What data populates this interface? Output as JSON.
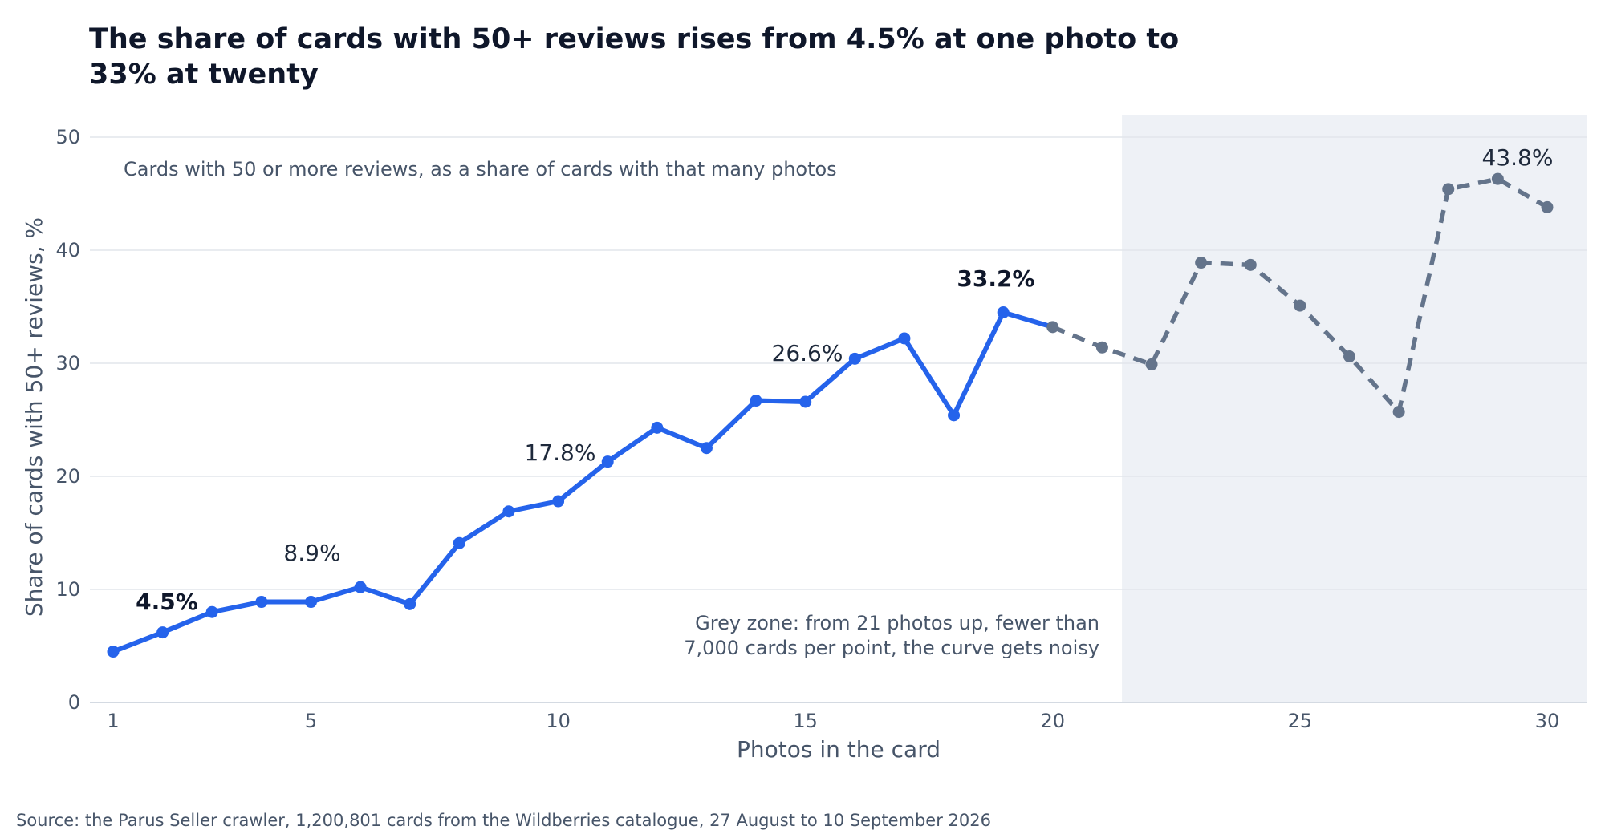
{
  "chart_data": {
    "type": "line",
    "title_lines": [
      "The share of cards with 50+ reviews rises from 4.5% at one photo to",
      "33% at twenty"
    ],
    "subtitle": "Cards with 50 or more reviews, as a share of cards with that many photos",
    "xlabel": "Photos in the card",
    "ylabel": "Share of cards with 50+ reviews, %",
    "xlim": [
      0.5,
      30.8
    ],
    "ylim": [
      0,
      52
    ],
    "x_ticks": [
      1,
      5,
      10,
      15,
      20,
      25,
      30
    ],
    "y_ticks": [
      0,
      10,
      20,
      30,
      40,
      50
    ],
    "grid": "horizontal",
    "x": [
      1,
      2,
      3,
      4,
      5,
      6,
      7,
      8,
      9,
      10,
      11,
      12,
      13,
      14,
      15,
      16,
      17,
      18,
      19,
      20,
      21,
      22,
      23,
      24,
      25,
      26,
      27,
      28,
      29,
      30
    ],
    "y": [
      4.5,
      6.2,
      8.0,
      8.9,
      8.9,
      10.2,
      8.7,
      14.1,
      16.9,
      17.8,
      21.3,
      24.3,
      22.5,
      26.7,
      26.6,
      30.4,
      32.2,
      25.4,
      34.5,
      33.2,
      31.4,
      29.9,
      38.9,
      38.7,
      35.1,
      30.6,
      25.7,
      45.4,
      46.3,
      43.8
    ],
    "series": [
      {
        "points": "1-20",
        "style": "solid",
        "color": "#2563EB"
      },
      {
        "points": "20-30",
        "style": "dashed",
        "color": "#64748B"
      }
    ],
    "grey_zone": {
      "from_x": 21.4,
      "to_x": 30.8,
      "color": "#EEF1F6",
      "note_lines": [
        "Grey zone: from 21 photos up, fewer than",
        "7,000 cards per point, the curve gets noisy"
      ]
    },
    "annotations": [
      {
        "x": 2,
        "y": 4.5,
        "text": "4.5%",
        "bold": true
      },
      {
        "x": 5,
        "y": 8.9,
        "text": "8.9%",
        "bold": false
      },
      {
        "x": 10,
        "y": 17.8,
        "text": "17.8%",
        "bold": false
      },
      {
        "x": 15,
        "y": 26.6,
        "text": "26.6%",
        "bold": false
      },
      {
        "x": 19,
        "y": 33.2,
        "text": "33.2%",
        "bold": true
      },
      {
        "x": 29,
        "y": 43.8,
        "text": "43.8%",
        "bold": false
      }
    ],
    "source": "Source: the Parus Seller crawler, 1,200,801 cards from the Wildberries catalogue, 27 August to 10 September 2026"
  }
}
